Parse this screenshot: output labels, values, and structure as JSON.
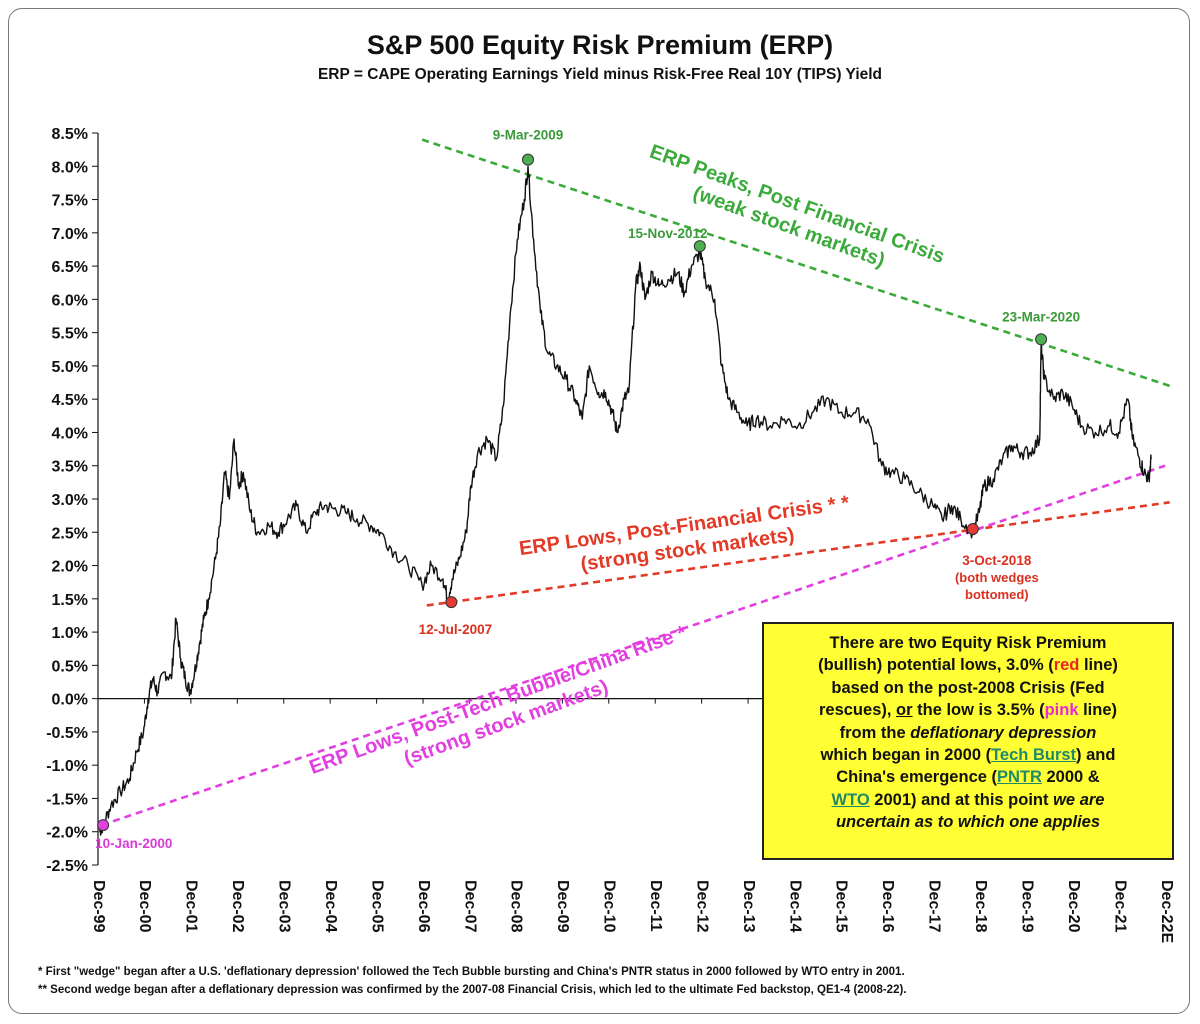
{
  "chart_data": {
    "type": "line",
    "title": "S&P 500 Equity Risk Premium (ERP)",
    "subtitle": "ERP = CAPE Operating Earnings Yield minus Risk-Free Real 10Y (TIPS) Yield",
    "xlabel": "",
    "ylabel": "",
    "ylim": [
      -2.5,
      8.5
    ],
    "y_ticks": [
      "8.5%",
      "8.0%",
      "7.5%",
      "7.0%",
      "6.5%",
      "6.0%",
      "5.5%",
      "5.0%",
      "4.5%",
      "4.0%",
      "3.5%",
      "3.0%",
      "2.5%",
      "2.0%",
      "1.5%",
      "1.0%",
      "0.5%",
      "0.0%",
      "-0.5%",
      "-1.0%",
      "-1.5%",
      "-2.0%",
      "-2.5%"
    ],
    "x_ticks": [
      "Dec-99",
      "Dec-00",
      "Dec-01",
      "Dec-02",
      "Dec-03",
      "Dec-04",
      "Dec-05",
      "Dec-06",
      "Dec-07",
      "Dec-08",
      "Dec-09",
      "Dec-10",
      "Dec-11",
      "Dec-12",
      "Dec-13",
      "Dec-14",
      "Dec-15",
      "Dec-16",
      "Dec-17",
      "Dec-18",
      "Dec-19",
      "Dec-20",
      "Dec-21",
      "Dec-22E"
    ],
    "grid": false,
    "series": [
      {
        "color": "#111111",
        "points": [
          [
            1999.95,
            -2.0
          ],
          [
            2000.03,
            -1.9
          ],
          [
            2000.2,
            -1.6
          ],
          [
            2000.4,
            -1.4
          ],
          [
            2000.6,
            -1.2
          ],
          [
            2000.75,
            -0.8
          ],
          [
            2000.9,
            -0.5
          ],
          [
            2001.0,
            0.0
          ],
          [
            2001.1,
            0.3
          ],
          [
            2001.2,
            0.1
          ],
          [
            2001.35,
            0.4
          ],
          [
            2001.5,
            0.3
          ],
          [
            2001.6,
            1.2
          ],
          [
            2001.7,
            0.6
          ],
          [
            2001.8,
            0.3
          ],
          [
            2001.9,
            0.1
          ],
          [
            2002.0,
            0.4
          ],
          [
            2002.1,
            0.8
          ],
          [
            2002.2,
            1.2
          ],
          [
            2002.3,
            1.5
          ],
          [
            2002.45,
            2.1
          ],
          [
            2002.55,
            2.6
          ],
          [
            2002.65,
            3.4
          ],
          [
            2002.75,
            3.0
          ],
          [
            2002.85,
            3.9
          ],
          [
            2002.95,
            3.2
          ],
          [
            2003.05,
            3.4
          ],
          [
            2003.2,
            2.8
          ],
          [
            2003.35,
            2.5
          ],
          [
            2003.6,
            2.6
          ],
          [
            2003.8,
            2.5
          ],
          [
            2004.0,
            2.7
          ],
          [
            2004.2,
            2.9
          ],
          [
            2004.4,
            2.5
          ],
          [
            2004.6,
            2.8
          ],
          [
            2004.8,
            2.9
          ],
          [
            2005.0,
            2.85
          ],
          [
            2005.25,
            2.8
          ],
          [
            2005.5,
            2.7
          ],
          [
            2005.8,
            2.6
          ],
          [
            2006.0,
            2.5
          ],
          [
            2006.3,
            2.2
          ],
          [
            2006.6,
            2.0
          ],
          [
            2006.9,
            1.7
          ],
          [
            2007.1,
            2.0
          ],
          [
            2007.35,
            1.8
          ],
          [
            2007.45,
            1.5
          ],
          [
            2007.55,
            1.8
          ],
          [
            2007.7,
            2.1
          ],
          [
            2007.85,
            2.5
          ],
          [
            2007.95,
            3.2
          ],
          [
            2008.1,
            3.7
          ],
          [
            2008.3,
            3.9
          ],
          [
            2008.5,
            3.6
          ],
          [
            2008.65,
            4.4
          ],
          [
            2008.8,
            5.8
          ],
          [
            2008.95,
            6.9
          ],
          [
            2009.1,
            7.5
          ],
          [
            2009.18,
            8.0
          ],
          [
            2009.3,
            6.9
          ],
          [
            2009.45,
            5.8
          ],
          [
            2009.6,
            5.2
          ],
          [
            2009.8,
            5.0
          ],
          [
            2010.0,
            4.8
          ],
          [
            2010.2,
            4.5
          ],
          [
            2010.35,
            4.2
          ],
          [
            2010.5,
            5.0
          ],
          [
            2010.7,
            4.6
          ],
          [
            2010.85,
            4.6
          ],
          [
            2011.0,
            4.3
          ],
          [
            2011.1,
            4.0
          ],
          [
            2011.25,
            4.5
          ],
          [
            2011.35,
            4.6
          ],
          [
            2011.5,
            6.2
          ],
          [
            2011.6,
            6.5
          ],
          [
            2011.7,
            6.0
          ],
          [
            2011.85,
            6.4
          ],
          [
            2012.0,
            6.2
          ],
          [
            2012.2,
            6.3
          ],
          [
            2012.4,
            6.4
          ],
          [
            2012.55,
            6.1
          ],
          [
            2012.7,
            6.5
          ],
          [
            2012.88,
            6.7
          ],
          [
            2013.0,
            6.3
          ],
          [
            2013.2,
            6.0
          ],
          [
            2013.35,
            5.0
          ],
          [
            2013.5,
            4.5
          ],
          [
            2013.7,
            4.3
          ],
          [
            2013.9,
            4.1
          ],
          [
            2014.1,
            4.2
          ],
          [
            2014.4,
            4.1
          ],
          [
            2014.7,
            4.2
          ],
          [
            2015.0,
            4.1
          ],
          [
            2015.3,
            4.3
          ],
          [
            2015.6,
            4.5
          ],
          [
            2015.9,
            4.3
          ],
          [
            2016.2,
            4.3
          ],
          [
            2016.5,
            4.2
          ],
          [
            2016.8,
            3.5
          ],
          [
            2017.0,
            3.4
          ],
          [
            2017.3,
            3.3
          ],
          [
            2017.6,
            3.1
          ],
          [
            2017.9,
            2.9
          ],
          [
            2018.1,
            2.7
          ],
          [
            2018.3,
            2.9
          ],
          [
            2018.5,
            2.7
          ],
          [
            2018.76,
            2.5
          ],
          [
            2018.9,
            2.8
          ],
          [
            2019.0,
            3.2
          ],
          [
            2019.2,
            3.3
          ],
          [
            2019.4,
            3.6
          ],
          [
            2019.6,
            3.8
          ],
          [
            2019.8,
            3.7
          ],
          [
            2020.0,
            3.7
          ],
          [
            2020.2,
            3.9
          ],
          [
            2020.23,
            5.3
          ],
          [
            2020.3,
            4.8
          ],
          [
            2020.5,
            4.5
          ],
          [
            2020.7,
            4.6
          ],
          [
            2020.9,
            4.4
          ],
          [
            2021.1,
            4.1
          ],
          [
            2021.4,
            4.0
          ],
          [
            2021.7,
            4.1
          ],
          [
            2021.9,
            4.0
          ],
          [
            2022.1,
            4.5
          ],
          [
            2022.2,
            3.9
          ],
          [
            2022.35,
            3.6
          ],
          [
            2022.45,
            3.4
          ],
          [
            2022.55,
            3.3
          ],
          [
            2022.6,
            3.6
          ]
        ]
      }
    ],
    "trend_lines": [
      {
        "name": "peaks",
        "color": "#3aab3a",
        "from": [
          2006.9,
          8.4
        ],
        "to": [
          2023.0,
          4.7
        ]
      },
      {
        "name": "red-lows",
        "color": "#e33a27",
        "from": [
          2007.0,
          1.4
        ],
        "to": [
          2023.0,
          2.95
        ]
      },
      {
        "name": "pink-lows",
        "color": "#e23ee0",
        "from": [
          2000.0,
          -1.9
        ],
        "to": [
          2022.9,
          3.5
        ]
      }
    ],
    "markers": [
      {
        "label": "9-Mar-2009",
        "x": 2009.18,
        "y": 8.1,
        "color": "#4caf50",
        "label_color": "#3a9a3a"
      },
      {
        "label": "15-Nov-2012",
        "x": 2012.88,
        "y": 6.8,
        "color": "#4caf50",
        "label_color": "#3a9a3a"
      },
      {
        "label": "23-Mar-2020",
        "x": 2020.23,
        "y": 5.4,
        "color": "#4caf50",
        "label_color": "#3a9a3a"
      },
      {
        "label": "12-Jul-2007",
        "x": 2007.53,
        "y": 1.45,
        "color": "#e53935",
        "label_color": "#d93020"
      },
      {
        "label": "3-Oct-2018",
        "x": 2018.76,
        "y": 2.55,
        "color": "#e53935",
        "label_color": "#d93020"
      },
      {
        "label": "10-Jan-2000",
        "x": 2000.03,
        "y": -1.9,
        "color": "#e23ee0",
        "label_color": "#d93ad8"
      }
    ],
    "annotations": {
      "bottomed_note": [
        "(both wedges",
        "bottomed)"
      ],
      "peaks": [
        "ERP Peaks, Post Financial Crisis",
        "(weak stock markets)"
      ],
      "red_lows": [
        "ERP Lows, Post-Financial Crisis * *",
        "(strong stock markets)"
      ],
      "pink_lows": [
        "ERP Lows, Post-Tech Bubble/China Rise *",
        "(strong stock markets)"
      ]
    }
  },
  "note_box": {
    "l1": "There are two Equity Risk Premium",
    "l2a": "(bullish) potential lows, 3.0% (",
    "l2red": "red",
    "l2b": " line)",
    "l3": "based on the post-2008 Crisis (Fed",
    "l4a": "rescues), ",
    "l4or": "or",
    "l4b": " the low is 3.5% (",
    "l4pink": "pink",
    "l4c": " line)",
    "l5a": "from the ",
    "l5i": "deflationary depression",
    "l6a": "which began in 2000 (",
    "l6link": "Tech Burst",
    "l6b": ") and",
    "l7a": "China's emergence (",
    "l7link": "PNTR",
    "l7b": " 2000 &",
    "l8link": "WTO",
    "l8b": " 2001) and at this point ",
    "l8i": "we are",
    "l9i": "uncertain as to which one applies"
  },
  "footnotes": [
    "*  First \"wedge\" began after a U.S. 'deflationary depression' followed the Tech Bubble bursting and China's PNTR status in 2000 followed by WTO entry in 2001.",
    "** Second wedge began after a deflationary depression was confirmed by the 2007-08 Financial Crisis, which led to the ultimate Fed backstop, QE1-4 (2008-22)."
  ]
}
